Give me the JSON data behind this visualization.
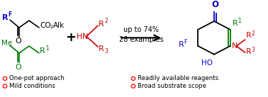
{
  "bg_color": "#ffffff",
  "arrow_text": [
    "up to 74%",
    "28 examples"
  ],
  "arrow_text_fontsize": 7.0,
  "bullet_color": "#ff0000",
  "bullet_items_left": [
    "One-pot approach",
    "Mild conditions"
  ],
  "bullet_items_right": [
    "Readily available reagents",
    "Broad substrate scope"
  ],
  "bullet_fontsize": 6.2,
  "colors": {
    "black": "#000000",
    "blue": "#0000cc",
    "green": "#007700",
    "red": "#cc0000",
    "dark_blue": "#0000bb"
  }
}
